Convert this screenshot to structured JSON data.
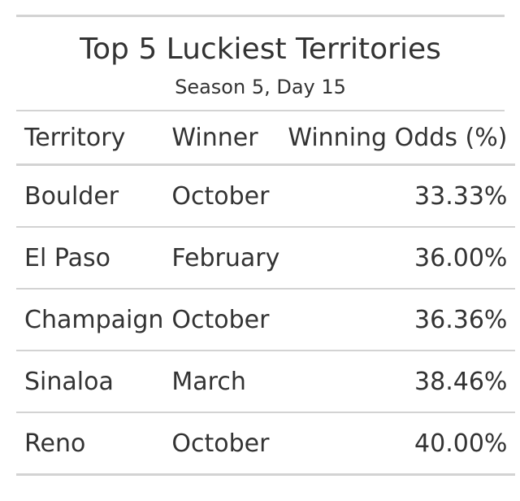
{
  "chart_data": {
    "type": "table",
    "title": "Top 5 Luckiest Territories",
    "subtitle": "Season 5, Day 15",
    "columns": [
      "Territory",
      "Winner",
      "Winning Odds (%)"
    ],
    "rows": [
      {
        "territory": "Boulder",
        "winner": "October",
        "odds": "33.33%"
      },
      {
        "territory": "El Paso",
        "winner": "February",
        "odds": "36.00%"
      },
      {
        "territory": "Champaign",
        "winner": "October",
        "odds": "36.36%"
      },
      {
        "territory": "Sinaloa",
        "winner": "March",
        "odds": "38.46%"
      },
      {
        "territory": "Reno",
        "winner": "October",
        "odds": "40.00%"
      }
    ],
    "values": [
      33.33,
      36.0,
      36.36,
      38.46,
      40.0
    ]
  }
}
